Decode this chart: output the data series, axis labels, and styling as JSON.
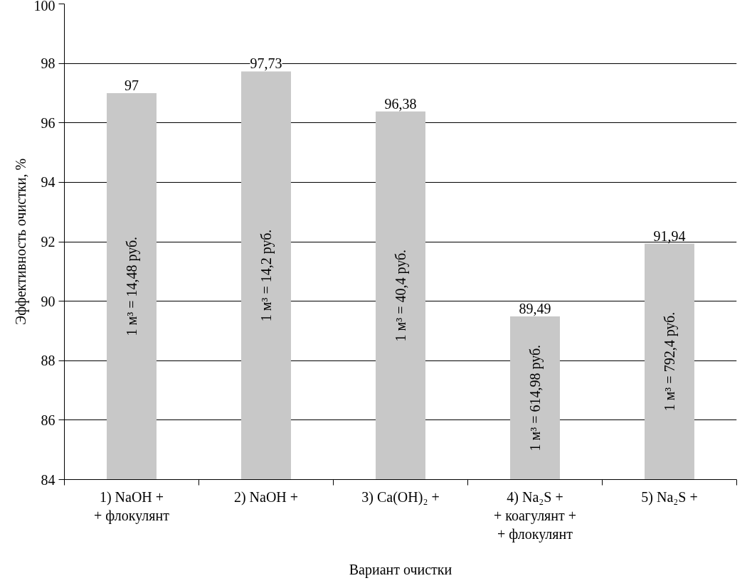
{
  "chart_data": {
    "type": "bar",
    "xlabel": "Вариант очистки",
    "ylabel": "Эффективность очистки, %",
    "categories": [
      "1) NaOH +\n+ флокулянт",
      "2) NaOH +",
      "3) Ca(OH)₂ +",
      "4) Na₂S +\n+ коагулянт +\n+ флокулянт",
      "5) Na₂S +"
    ],
    "values": [
      97,
      97.73,
      96.38,
      89.49,
      91.94
    ],
    "value_labels": [
      "97",
      "97,73",
      "96,38",
      "89,49",
      "91,94"
    ],
    "color": "#c8c8c8",
    "ylim": [
      84,
      100
    ],
    "yticks": [
      84,
      86,
      88,
      90,
      92,
      94,
      96,
      98,
      100
    ],
    "grid": "y",
    "annotations": [
      "1 м³ = 14,48 руб.",
      "1 м³ = 14,2 руб.",
      "1 м³ = 40,4 руб.",
      "1 м³ = 614,98 руб.",
      "1 м³ = 792,4 руб."
    ]
  }
}
